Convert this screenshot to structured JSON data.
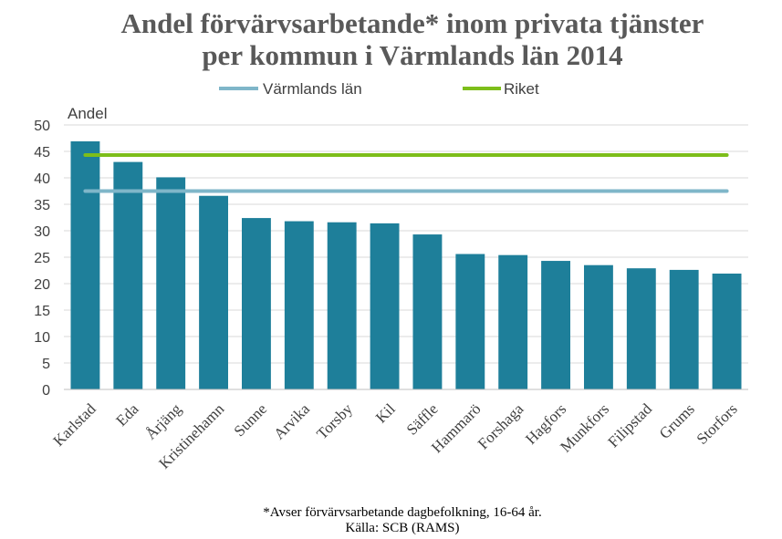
{
  "chart_data": {
    "type": "bar",
    "title_lines": [
      "Andel förvärvsarbetande* inom privata tjänster",
      "per kommun i Värmlands län 2014"
    ],
    "ylabel": "Andel",
    "xlabel": "",
    "ylim": [
      0,
      50
    ],
    "yticks": [
      0,
      5,
      10,
      15,
      20,
      25,
      30,
      35,
      40,
      45,
      50
    ],
    "grid": true,
    "legend_position": "top",
    "categories": [
      "Karlstad",
      "Eda",
      "Årjäng",
      "Kristinehamn",
      "Sunne",
      "Arvika",
      "Torsby",
      "Kil",
      "Säffle",
      "Hammarö",
      "Forshaga",
      "Hagfors",
      "Munkfors",
      "Filipstad",
      "Grums",
      "Storfors"
    ],
    "series": [
      {
        "values": [
          46.9,
          43.0,
          40.1,
          36.6,
          32.4,
          31.8,
          31.6,
          31.4,
          29.3,
          25.6,
          25.4,
          24.3,
          23.5,
          22.9,
          22.6,
          21.9
        ],
        "color": "#1E7F9A"
      }
    ],
    "reference_lines": [
      {
        "name": "Värmlands län",
        "value": 37.5,
        "color": "#7FB6C9"
      },
      {
        "name": "Riket",
        "value": 44.3,
        "color": "#7DBE1A"
      }
    ],
    "footnotes": [
      "*Avser förvärvsarbetande dagbefolkning, 16-64 år.",
      "Källa: SCB (RAMS)"
    ]
  }
}
